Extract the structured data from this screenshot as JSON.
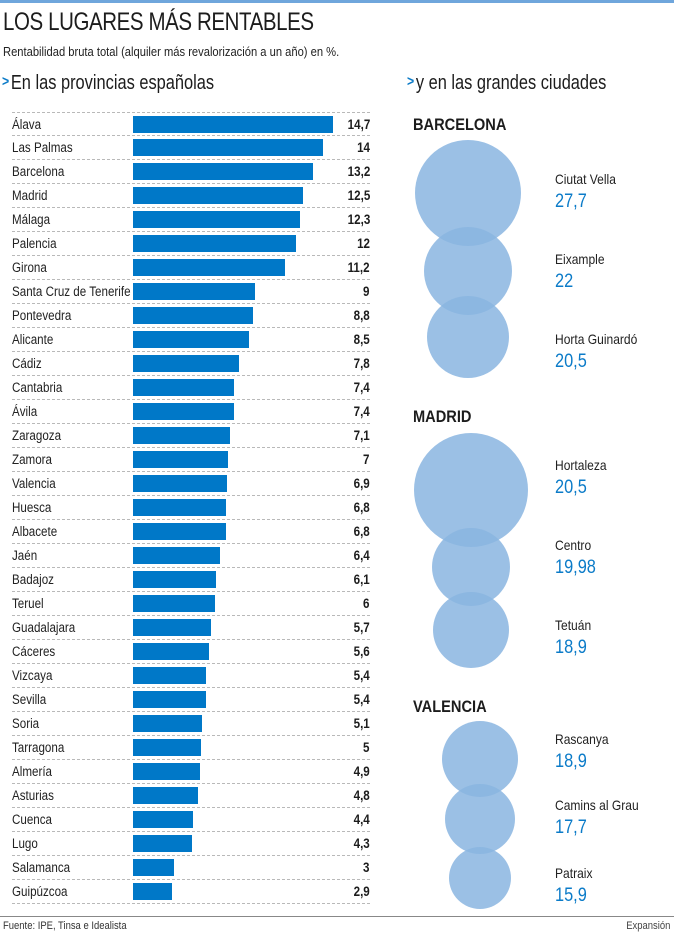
{
  "header": {
    "title": "LOS LUGARES MÁS RENTABLES",
    "subtitle": "Rentabilidad bruta total (alquiler más revalorización a un año) en %."
  },
  "sections": {
    "provinces_heading": "En las provincias españolas",
    "cities_heading": "y en las grandes ciudades",
    "arrow_glyph": ">"
  },
  "colors": {
    "bar": "#0078c8",
    "bubble": "#8ab5e0",
    "accent_text": "#0b7bc8",
    "top_rule": "#6fa6dc"
  },
  "chart_data": [
    {
      "type": "bar",
      "orientation": "horizontal",
      "title": "En las provincias españolas",
      "xlabel": "",
      "ylabel": "",
      "unit": "%",
      "xlim": [
        0,
        14.7
      ],
      "grid": false,
      "categories": [
        "Álava",
        "Las Palmas",
        "Barcelona",
        "Madrid",
        "Málaga",
        "Palencia",
        "Girona",
        "Santa Cruz de Tenerife",
        "Pontevedra",
        "Alicante",
        "Cádiz",
        "Cantabria",
        "Ávila",
        "Zaragoza",
        "Zamora",
        "Valencia",
        "Huesca",
        "Albacete",
        "Jaén",
        "Badajoz",
        "Teruel",
        "Guadalajara",
        "Cáceres",
        "Vizcaya",
        "Sevilla",
        "Soria",
        "Tarragona",
        "Almería",
        "Asturias",
        "Cuenca",
        "Lugo",
        "Salamanca",
        "Guipúzcoa"
      ],
      "values": [
        14.7,
        14,
        13.2,
        12.5,
        12.3,
        12,
        11.2,
        9,
        8.8,
        8.5,
        7.8,
        7.4,
        7.4,
        7.1,
        7,
        6.9,
        6.8,
        6.8,
        6.4,
        6.1,
        6,
        5.7,
        5.6,
        5.4,
        5.4,
        5.1,
        5,
        4.9,
        4.8,
        4.4,
        4.3,
        3,
        2.9
      ],
      "value_labels": [
        "14,7",
        "14",
        "13,2",
        "12,5",
        "12,3",
        "12",
        "11,2",
        "9",
        "8,8",
        "8,5",
        "7,8",
        "7,4",
        "7,4",
        "7,1",
        "7",
        "6,9",
        "6,8",
        "6,8",
        "6,4",
        "6,1",
        "6",
        "5,7",
        "5,6",
        "5,4",
        "5,4",
        "5,1",
        "5",
        "4,9",
        "4,8",
        "4,4",
        "4,3",
        "3",
        "2,9"
      ]
    },
    {
      "type": "scatter",
      "subtype": "bubble",
      "title": "y en las grandes ciudades",
      "unit": "%",
      "groups": [
        {
          "city": "BARCELONA",
          "districts": [
            {
              "name": "Ciutat Vella",
              "value": 27.7,
              "label": "27,7"
            },
            {
              "name": "Eixample",
              "value": 22,
              "label": "22"
            },
            {
              "name": "Horta Guinardó",
              "value": 20.5,
              "label": "20,5"
            }
          ]
        },
        {
          "city": "MADRID",
          "districts": [
            {
              "name": "Hortaleza",
              "value": 20.5,
              "label": "20,5"
            },
            {
              "name": "Centro",
              "value": 19.98,
              "label": "19,98"
            },
            {
              "name": "Tetuán",
              "value": 18.9,
              "label": "18,9"
            }
          ]
        },
        {
          "city": "VALENCIA",
          "districts": [
            {
              "name": "Rascanya",
              "value": 18.9,
              "label": "18,9"
            },
            {
              "name": "Camins al Grau",
              "value": 17.7,
              "label": "17,7"
            },
            {
              "name": "Patraix",
              "value": 15.9,
              "label": "15,9"
            }
          ]
        }
      ]
    }
  ],
  "footer": {
    "source": "Fuente: IPE, Tinsa e Idealista",
    "brand": "Expansión"
  }
}
